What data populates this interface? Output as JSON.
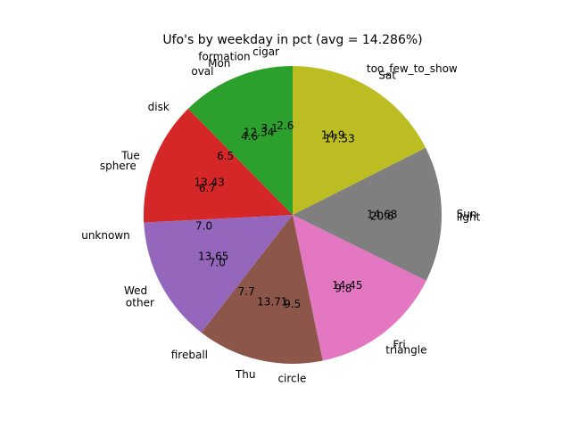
{
  "chart_data": [
    {
      "type": "pie",
      "title": "Ufo's by weekday in pct (avg = 14.286%)",
      "start_angle_deg": 90,
      "direction": "counterclockwise",
      "categories": [
        "Mon",
        "Tue",
        "Wed",
        "Thu",
        "Fri",
        "Sun",
        "Sat"
      ],
      "values": [
        12.34,
        13.43,
        13.65,
        13.71,
        14.45,
        14.68,
        17.53
      ],
      "value_labels": [
        "12.34",
        "13.43",
        "13.65",
        "13.71",
        "14.45",
        "14.68",
        "17.53"
      ],
      "colors": [
        "#2ca02c",
        "#d62728",
        "#9467bd",
        "#8c564b",
        "#e377c2",
        "#7f7f7f",
        "#bcbd22"
      ]
    },
    {
      "type": "pie",
      "start_angle_deg": 90,
      "direction": "counterclockwise",
      "categories": [
        "cigar",
        "formation",
        "oval",
        "disk",
        "sphere",
        "unknown",
        "other",
        "fireball",
        "circle",
        "triangle",
        "light",
        "too_few_to_show"
      ],
      "values": [
        2.6,
        3.1,
        4.6,
        6.5,
        6.7,
        7.0,
        7.0,
        7.7,
        9.5,
        9.8,
        20.6,
        14.9
      ],
      "value_labels": [
        "2.6",
        "3.1",
        "4.6",
        "6.5",
        "6.7",
        "7.0",
        "7.0",
        "7.7",
        "9.5",
        "9.8",
        "20.6",
        "14.9"
      ]
    }
  ]
}
